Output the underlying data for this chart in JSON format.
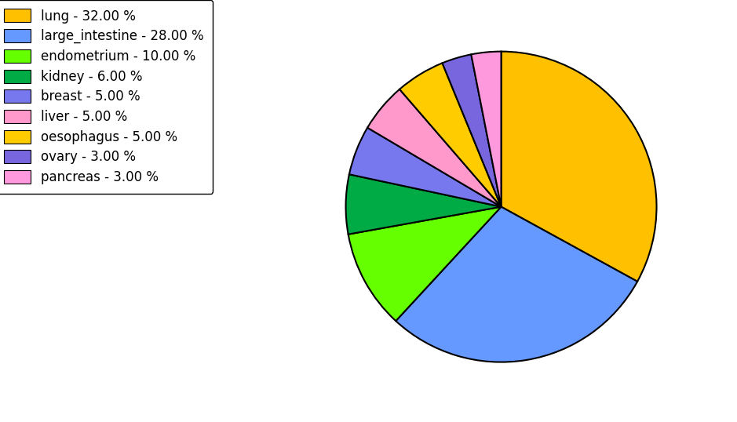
{
  "labels": [
    "lung",
    "large_intestine",
    "endometrium",
    "kidney",
    "breast",
    "liver",
    "oesophagus",
    "ovary",
    "pancreas"
  ],
  "values": [
    32.0,
    28.0,
    10.0,
    6.0,
    5.0,
    5.0,
    5.0,
    3.0,
    3.0
  ],
  "colors": [
    "#FFC000",
    "#6699FF",
    "#66FF00",
    "#00AA44",
    "#7777EE",
    "#FF99CC",
    "#FFCC00",
    "#7766DD",
    "#FF99DD"
  ],
  "legend_labels": [
    "lung - 32.00 %",
    "large_intestine - 28.00 %",
    "endometrium - 10.00 %",
    "kidney - 6.00 %",
    "breast - 5.00 %",
    "liver - 5.00 %",
    "oesophagus - 5.00 %",
    "ovary - 3.00 %",
    "pancreas - 3.00 %"
  ],
  "background_color": "#ffffff",
  "startangle": 90,
  "figsize": [
    9.39,
    5.38
  ],
  "dpi": 100
}
